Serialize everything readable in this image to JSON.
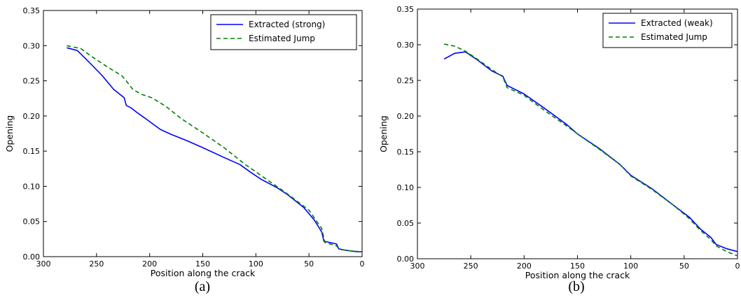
{
  "chart_data": [
    {
      "type": "line",
      "caption": "(a)",
      "xlabel": "Position along the crack",
      "ylabel": "Opening",
      "xlim": [
        300,
        0
      ],
      "ylim": [
        0,
        0.35
      ],
      "x_ticks": [
        "300",
        "250",
        "200",
        "150",
        "100",
        "50",
        "0"
      ],
      "y_ticks": [
        "0.00",
        "0.05",
        "0.10",
        "0.15",
        "0.20",
        "0.25",
        "0.30",
        "0.35"
      ],
      "legend_position": "top-right",
      "grid": false,
      "series": [
        {
          "name": "Extracted (strong)",
          "color": "#0000ff",
          "style": "solid",
          "points": [
            [
              278,
              0.297
            ],
            [
              268,
              0.293
            ],
            [
              258,
              0.278
            ],
            [
              245,
              0.258
            ],
            [
              234,
              0.238
            ],
            [
              224,
              0.226
            ],
            [
              222,
              0.215
            ],
            [
              218,
              0.212
            ],
            [
              212,
              0.205
            ],
            [
              200,
              0.192
            ],
            [
              190,
              0.181
            ],
            [
              180,
              0.174
            ],
            [
              165,
              0.165
            ],
            [
              150,
              0.155
            ],
            [
              130,
              0.141
            ],
            [
              115,
              0.131
            ],
            [
              105,
              0.12
            ],
            [
              95,
              0.11
            ],
            [
              80,
              0.098
            ],
            [
              70,
              0.088
            ],
            [
              55,
              0.07
            ],
            [
              45,
              0.052
            ],
            [
              38,
              0.035
            ],
            [
              36,
              0.022
            ],
            [
              30,
              0.02
            ],
            [
              24,
              0.018
            ],
            [
              22,
              0.011
            ],
            [
              15,
              0.009
            ],
            [
              5,
              0.007
            ],
            [
              0,
              0.007
            ]
          ]
        },
        {
          "name": "Estimated Jump",
          "color": "#008000",
          "style": "dashed",
          "points": [
            [
              278,
              0.3
            ],
            [
              265,
              0.296
            ],
            [
              255,
              0.285
            ],
            [
              240,
              0.27
            ],
            [
              226,
              0.257
            ],
            [
              222,
              0.25
            ],
            [
              216,
              0.238
            ],
            [
              208,
              0.231
            ],
            [
              198,
              0.226
            ],
            [
              185,
              0.214
            ],
            [
              170,
              0.196
            ],
            [
              150,
              0.176
            ],
            [
              130,
              0.155
            ],
            [
              110,
              0.131
            ],
            [
              90,
              0.11
            ],
            [
              70,
              0.089
            ],
            [
              50,
              0.066
            ],
            [
              38,
              0.04
            ],
            [
              35,
              0.02
            ],
            [
              25,
              0.016
            ],
            [
              20,
              0.01
            ],
            [
              10,
              0.008
            ],
            [
              0,
              0.007
            ]
          ]
        }
      ]
    },
    {
      "type": "line",
      "caption": "(b)",
      "xlabel": "Position along the crack",
      "ylabel": "Opening",
      "xlim": [
        300,
        0
      ],
      "ylim": [
        0,
        0.35
      ],
      "x_ticks": [
        "300",
        "250",
        "200",
        "150",
        "100",
        "50",
        "0"
      ],
      "y_ticks": [
        "0.00",
        "0.05",
        "0.10",
        "0.15",
        "0.20",
        "0.25",
        "0.30",
        "0.35"
      ],
      "legend_position": "top-right",
      "grid": false,
      "series": [
        {
          "name": "Extracted (weak)",
          "color": "#0000ff",
          "style": "solid",
          "points": [
            [
              275,
              0.28
            ],
            [
              265,
              0.288
            ],
            [
              255,
              0.29
            ],
            [
              245,
              0.28
            ],
            [
              230,
              0.263
            ],
            [
              220,
              0.256
            ],
            [
              216,
              0.243
            ],
            [
              200,
              0.231
            ],
            [
              180,
              0.21
            ],
            [
              160,
              0.188
            ],
            [
              150,
              0.175
            ],
            [
              130,
              0.155
            ],
            [
              110,
              0.132
            ],
            [
              100,
              0.117
            ],
            [
              80,
              0.098
            ],
            [
              60,
              0.075
            ],
            [
              45,
              0.058
            ],
            [
              35,
              0.042
            ],
            [
              25,
              0.03
            ],
            [
              20,
              0.02
            ],
            [
              10,
              0.014
            ],
            [
              0,
              0.01
            ]
          ]
        },
        {
          "name": "Estimated Jump",
          "color": "#008000",
          "style": "dashed",
          "points": [
            [
              275,
              0.301
            ],
            [
              265,
              0.298
            ],
            [
              255,
              0.291
            ],
            [
              245,
              0.281
            ],
            [
              230,
              0.265
            ],
            [
              220,
              0.255
            ],
            [
              216,
              0.24
            ],
            [
              200,
              0.229
            ],
            [
              180,
              0.207
            ],
            [
              160,
              0.186
            ],
            [
              150,
              0.175
            ],
            [
              130,
              0.154
            ],
            [
              110,
              0.132
            ],
            [
              100,
              0.116
            ],
            [
              80,
              0.097
            ],
            [
              60,
              0.075
            ],
            [
              45,
              0.056
            ],
            [
              35,
              0.04
            ],
            [
              25,
              0.027
            ],
            [
              20,
              0.018
            ],
            [
              10,
              0.01
            ],
            [
              0,
              0.004
            ]
          ]
        }
      ]
    }
  ]
}
